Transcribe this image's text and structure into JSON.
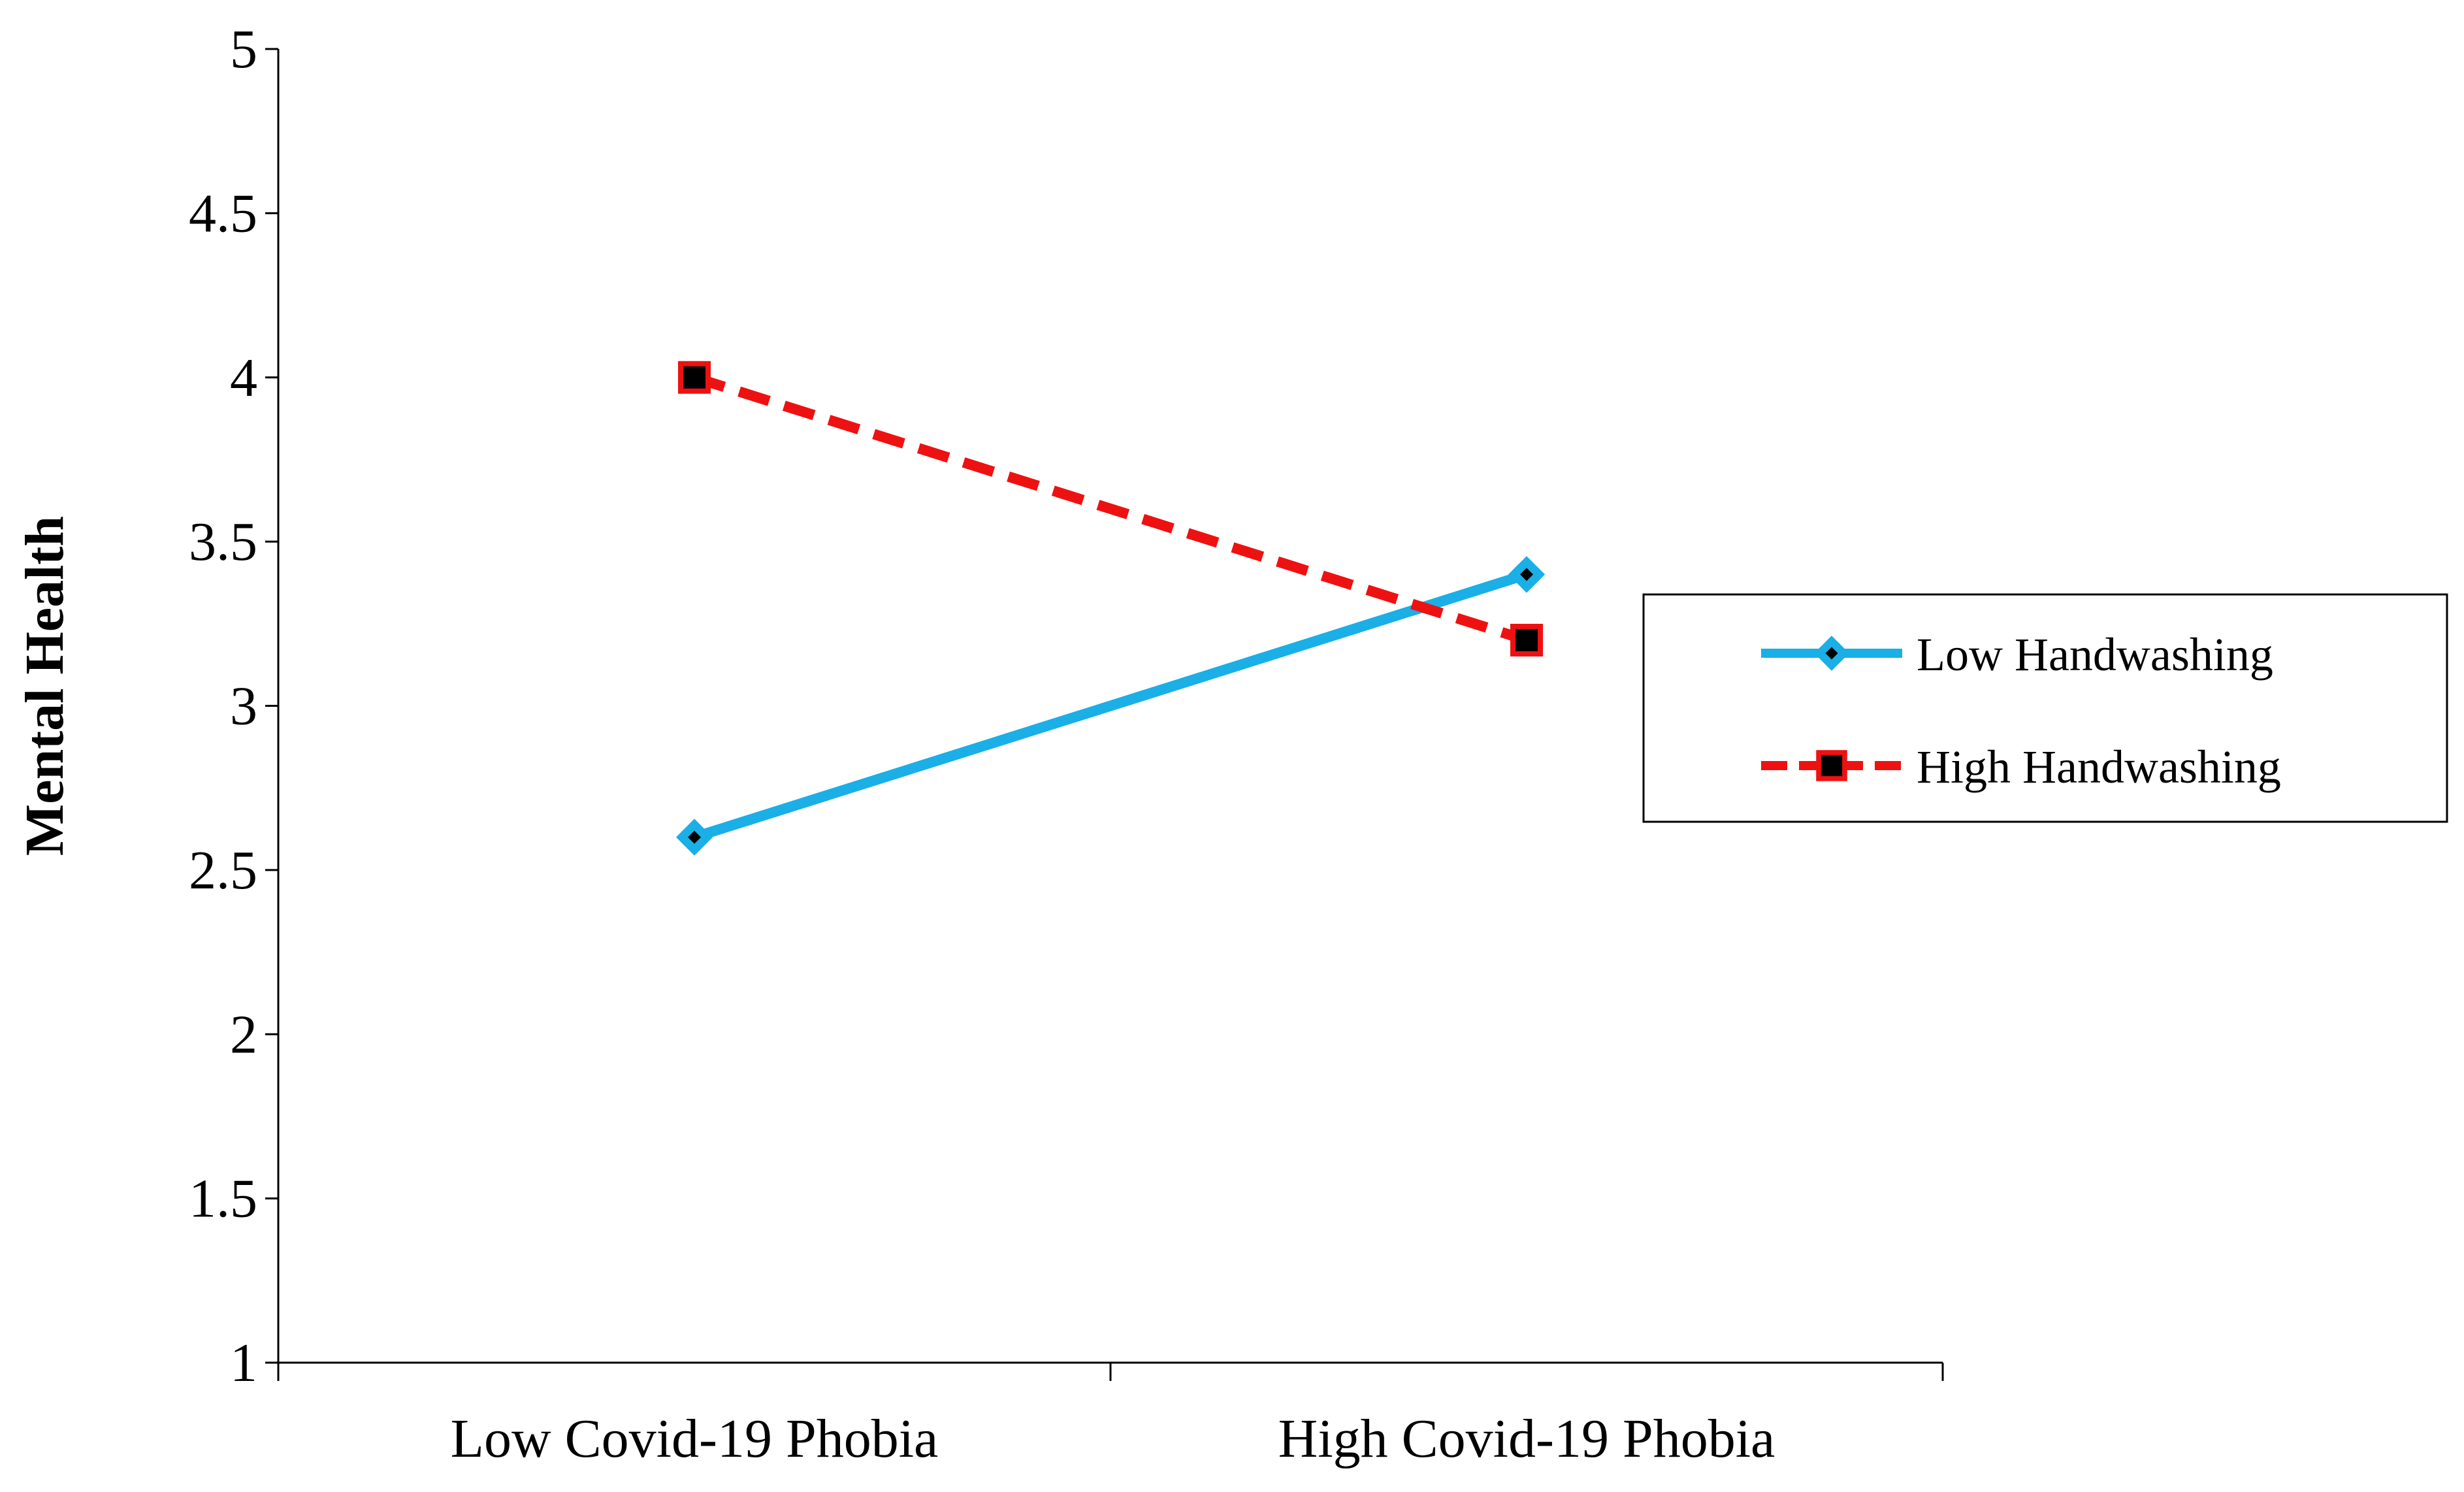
{
  "chart_data": {
    "type": "line",
    "categories": [
      "Low Covid-19 Phobia",
      "High Covid-19 Phobia"
    ],
    "series": [
      {
        "name": "Low Handwashing",
        "values": [
          2.6,
          3.4
        ],
        "color": "#1AAFE6",
        "line_style": "solid",
        "marker": "diamond"
      },
      {
        "name": "High Handwashing",
        "values": [
          4.0,
          3.2
        ],
        "color": "#EE1111",
        "line_style": "dashed",
        "marker": "square"
      }
    ],
    "title": "",
    "xlabel": "",
    "ylabel": "Mental Health",
    "ylim": [
      1,
      5
    ],
    "y_ticks": [
      "1",
      "1.5",
      "2",
      "2.5",
      "3",
      "3.5",
      "4",
      "4.5",
      "5"
    ],
    "grid": false,
    "legend_position": "right"
  }
}
